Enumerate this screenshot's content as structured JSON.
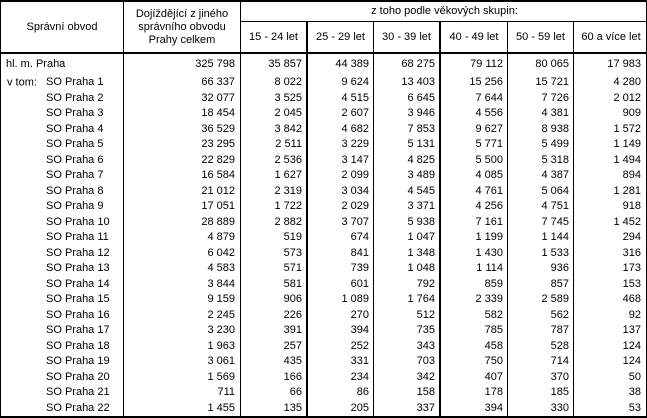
{
  "table": {
    "header": {
      "district": "Správní obvod",
      "total_lines": [
        "Dojíždějící z jiného",
        "správního obvodu",
        "Prahy celkem"
      ],
      "age_title": "z toho podle věkových skupin:",
      "age_groups": [
        "15 - 24 let",
        "25 - 29 let",
        "30 - 39 let",
        "40 - 49 let",
        "50 - 59 let",
        "60 a více let"
      ]
    },
    "v_tom_label": "v tom:",
    "total_row": {
      "label": "hl. m. Praha",
      "values": [
        "325 798",
        "35 857",
        "44 389",
        "68 275",
        "79 112",
        "80 065",
        "17 983"
      ]
    },
    "rows": [
      {
        "label": "SO Praha 1",
        "values": [
          "66 337",
          "8 022",
          "9 624",
          "13 403",
          "15 256",
          "15 721",
          "4 280"
        ]
      },
      {
        "label": "SO Praha 2",
        "values": [
          "32 077",
          "3 525",
          "4 515",
          "6 645",
          "7 644",
          "7 726",
          "2 012"
        ]
      },
      {
        "label": "SO Praha 3",
        "values": [
          "18 454",
          "2 045",
          "2 607",
          "3 946",
          "4 556",
          "4 381",
          "909"
        ]
      },
      {
        "label": "SO Praha 4",
        "values": [
          "36 529",
          "3 842",
          "4 682",
          "7 853",
          "9 627",
          "8 938",
          "1 572"
        ]
      },
      {
        "label": "SO Praha 5",
        "values": [
          "23 295",
          "2 511",
          "3 229",
          "5 131",
          "5 771",
          "5 499",
          "1 149"
        ]
      },
      {
        "label": "SO Praha 6",
        "values": [
          "22 829",
          "2 536",
          "3 147",
          "4 825",
          "5 500",
          "5 318",
          "1 494"
        ]
      },
      {
        "label": "SO Praha 7",
        "values": [
          "16 584",
          "1 627",
          "2 099",
          "3 489",
          "4 085",
          "4 387",
          "894"
        ]
      },
      {
        "label": "SO Praha 8",
        "values": [
          "21 012",
          "2 319",
          "3 034",
          "4 545",
          "4 761",
          "5 064",
          "1 281"
        ]
      },
      {
        "label": "SO Praha 9",
        "values": [
          "17 051",
          "1 722",
          "2 029",
          "3 371",
          "4 256",
          "4 751",
          "918"
        ]
      },
      {
        "label": "SO Praha 10",
        "values": [
          "28 889",
          "2 882",
          "3 707",
          "5 938",
          "7 161",
          "7 745",
          "1 452"
        ]
      },
      {
        "label": "SO Praha 11",
        "values": [
          "4 879",
          "519",
          "674",
          "1 047",
          "1 199",
          "1 144",
          "294"
        ]
      },
      {
        "label": "SO Praha 12",
        "values": [
          "6 042",
          "573",
          "841",
          "1 348",
          "1 430",
          "1 533",
          "316"
        ]
      },
      {
        "label": "SO Praha 13",
        "values": [
          "4 583",
          "571",
          "739",
          "1 048",
          "1 114",
          "936",
          "173"
        ]
      },
      {
        "label": "SO Praha 14",
        "values": [
          "3 844",
          "581",
          "601",
          "792",
          "859",
          "857",
          "153"
        ]
      },
      {
        "label": "SO Praha 15",
        "values": [
          "9 159",
          "906",
          "1 089",
          "1 764",
          "2 339",
          "2 589",
          "468"
        ]
      },
      {
        "label": "SO Praha 16",
        "values": [
          "2 245",
          "226",
          "270",
          "512",
          "582",
          "562",
          "92"
        ]
      },
      {
        "label": "SO Praha 17",
        "values": [
          "3 230",
          "391",
          "394",
          "735",
          "785",
          "787",
          "137"
        ]
      },
      {
        "label": "SO Praha 18",
        "values": [
          "1 963",
          "257",
          "252",
          "343",
          "458",
          "528",
          "124"
        ]
      },
      {
        "label": "SO Praha 19",
        "values": [
          "3 061",
          "435",
          "331",
          "703",
          "750",
          "714",
          "124"
        ]
      },
      {
        "label": "SO Praha 20",
        "values": [
          "1 569",
          "166",
          "234",
          "342",
          "407",
          "370",
          "50"
        ]
      },
      {
        "label": "SO Praha 21",
        "values": [
          "711",
          "66",
          "86",
          "158",
          "178",
          "185",
          "38"
        ]
      },
      {
        "label": "SO Praha 22",
        "values": [
          "1 455",
          "135",
          "205",
          "337",
          "394",
          "330",
          "53"
        ]
      }
    ]
  }
}
